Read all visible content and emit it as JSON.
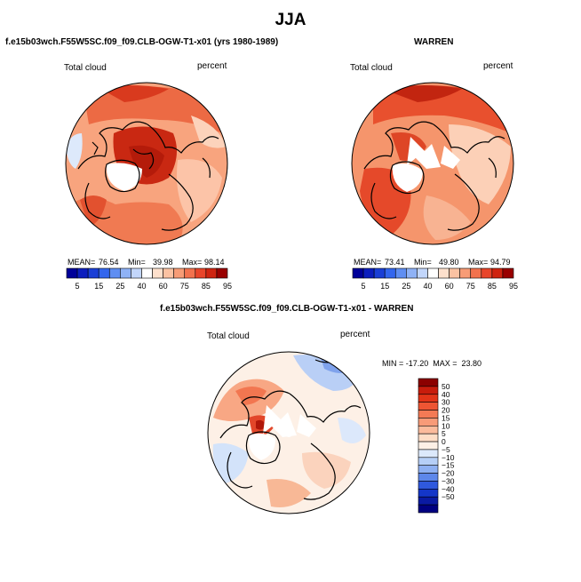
{
  "page": {
    "season": "JJA"
  },
  "panels": {
    "top_left": {
      "title": "f.e15b03wch.F55W5SC.f09_f09.CLB-OGW-T1-x01 (yrs 1980-1989)",
      "variable": "Total cloud",
      "units": "percent",
      "mean_label": "MEAN=",
      "mean": "76.54",
      "min_label": "Min=",
      "min": "39.98",
      "max_label": "Max=",
      "max": "98.14"
    },
    "top_right": {
      "title": "WARREN",
      "variable": "Total cloud",
      "units": "percent",
      "mean_label": "MEAN=",
      "mean": "73.41",
      "min_label": "Min=",
      "min": "49.80",
      "max_label": "Max=",
      "max": "94.79"
    },
    "bottom": {
      "title": "f.e15b03wch.F55W5SC.f09_f09.CLB-OGW-T1-x01 - WARREN",
      "variable": "Total cloud",
      "units": "percent",
      "minmax_text": "MIN = -17.20  MAX =  23.80"
    }
  },
  "chart_data": {
    "type": "heatmap",
    "projection": "north polar stereographic",
    "maps": [
      {
        "id": "model",
        "mean": 76.54,
        "min": 39.98,
        "max": 98.14
      },
      {
        "id": "warren",
        "mean": 73.41,
        "min": 49.8,
        "max": 94.79
      },
      {
        "id": "difference",
        "min": -17.2,
        "max": 23.8
      }
    ],
    "colorbar_abs": {
      "tick_labels": [
        "5",
        "15",
        "25",
        "40",
        "60",
        "75",
        "85",
        "95"
      ],
      "colors": [
        "#000099",
        "#0c1ebe",
        "#1a3fd6",
        "#3366ee",
        "#5f8ef2",
        "#8fb2f6",
        "#c2d6fb",
        "#ffffff",
        "#fde0cc",
        "#fbc2a2",
        "#f79c76",
        "#f2724e",
        "#e8452a",
        "#cf2410",
        "#990000"
      ]
    },
    "colorbar_diff": {
      "tick_labels": [
        "50",
        "40",
        "30",
        "20",
        "15",
        "10",
        "5",
        "0",
        "−5",
        "−10",
        "−15",
        "−20",
        "−30",
        "−40",
        "−50"
      ],
      "colors": [
        "#8b0000",
        "#c81c0c",
        "#e23418",
        "#ee5533",
        "#f47a55",
        "#f89b78",
        "#fbbb9c",
        "#feddc6",
        "#fdf0e6",
        "#dce9fb",
        "#b6cff7",
        "#8eb0f2",
        "#5d87ea",
        "#2f59de",
        "#1436c8",
        "#0a1aa2",
        "#000080"
      ]
    }
  }
}
